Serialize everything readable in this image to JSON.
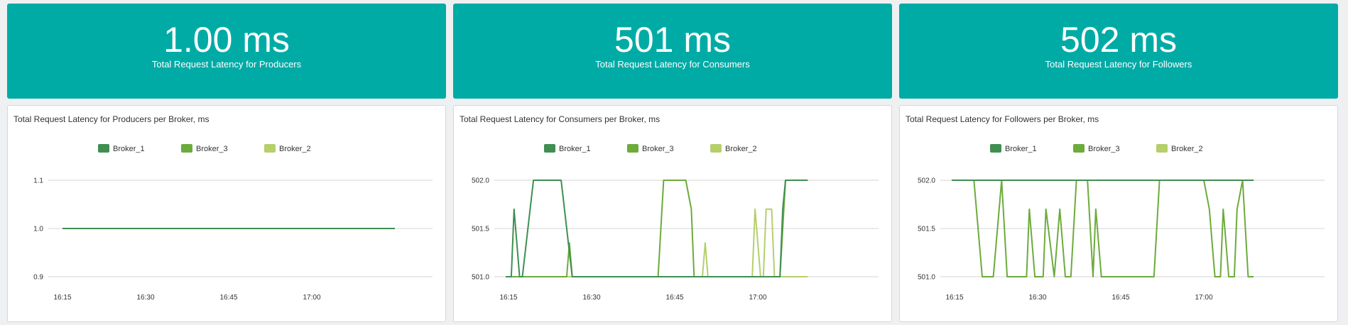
{
  "stats": [
    {
      "value": "1.00 ms",
      "label": "Total Request Latency for Producers"
    },
    {
      "value": "501 ms",
      "label": "Total Request Latency for Consumers"
    },
    {
      "value": "502 ms",
      "label": "Total Request Latency for Followers"
    }
  ],
  "colors": {
    "tile": "#00aba6",
    "Broker_1": "#3f8f52",
    "Broker_3": "#6cab3c",
    "Broker_2": "#b5cf6b",
    "grid": "#e3e3e3"
  },
  "chart_data": [
    {
      "type": "line",
      "title": "Total Request Latency for Producers per Broker, ms",
      "legend_position": "top-center",
      "grid": true,
      "xlim": [
        0,
        90
      ],
      "x_ticks": [
        {
          "x": 0,
          "label": "16:15"
        },
        {
          "x": 15,
          "label": "16:30"
        },
        {
          "x": 30,
          "label": "16:45"
        },
        {
          "x": 45,
          "label": "17:00"
        }
      ],
      "ylim": [
        0.9,
        1.1
      ],
      "y_ticks": [
        {
          "v": 0.9,
          "label": "0.9"
        },
        {
          "v": 1.0,
          "label": "1.0"
        },
        {
          "v": 1.1,
          "label": "1.1"
        }
      ],
      "series": [
        {
          "name": "Broker_1",
          "points": [
            [
              0,
              1.0
            ],
            [
              60,
              1.0
            ]
          ]
        },
        {
          "name": "Broker_3",
          "points": [
            [
              0,
              1.0
            ],
            [
              60,
              1.0
            ]
          ]
        },
        {
          "name": "Broker_2",
          "points": [
            [
              0,
              1.0
            ],
            [
              60,
              1.0
            ]
          ]
        }
      ]
    },
    {
      "type": "line",
      "title": "Total Request Latency for Consumers per Broker, ms",
      "legend_position": "top-center",
      "grid": true,
      "xlim": [
        0,
        90
      ],
      "x_ticks": [
        {
          "x": 0,
          "label": "16:15"
        },
        {
          "x": 15,
          "label": "16:30"
        },
        {
          "x": 30,
          "label": "16:45"
        },
        {
          "x": 45,
          "label": "17:00"
        }
      ],
      "ylim": [
        501.0,
        502.0
      ],
      "y_ticks": [
        {
          "v": 501.0,
          "label": "501.0"
        },
        {
          "v": 501.5,
          "label": "501.5"
        },
        {
          "v": 502.0,
          "label": "502.0"
        }
      ],
      "series": [
        {
          "name": "Broker_1",
          "points": [
            [
              -0.5,
              501
            ],
            [
              0.5,
              501
            ],
            [
              1,
              501.7
            ],
            [
              2,
              501
            ],
            [
              2.5,
              501
            ],
            [
              4.5,
              502
            ],
            [
              9.5,
              502
            ],
            [
              11.5,
              501
            ],
            [
              45,
              501
            ],
            [
              49,
              501
            ],
            [
              49.5,
              501.7
            ],
            [
              50,
              502
            ],
            [
              54,
              502
            ]
          ]
        },
        {
          "name": "Broker_3",
          "points": [
            [
              -0.5,
              501
            ],
            [
              10.5,
              501
            ],
            [
              11,
              501.35
            ],
            [
              11.5,
              501
            ],
            [
              27,
              501
            ],
            [
              28,
              502
            ],
            [
              32,
              502
            ],
            [
              33,
              501.7
            ],
            [
              33.5,
              501
            ],
            [
              47,
              501
            ],
            [
              49,
              501
            ],
            [
              50,
              502
            ],
            [
              54,
              502
            ]
          ]
        },
        {
          "name": "Broker_2",
          "points": [
            [
              -0.5,
              501
            ],
            [
              35,
              501
            ],
            [
              35.5,
              501.35
            ],
            [
              36,
              501
            ],
            [
              44,
              501
            ],
            [
              44.5,
              501.7
            ],
            [
              45.5,
              501
            ],
            [
              46,
              501
            ],
            [
              46.5,
              501.7
            ],
            [
              47.5,
              501.7
            ],
            [
              48,
              501
            ],
            [
              54,
              501
            ]
          ]
        }
      ]
    },
    {
      "type": "line",
      "title": "Total Request Latency for Followers per Broker, ms",
      "legend_position": "top-center",
      "grid": true,
      "xlim": [
        0,
        90
      ],
      "x_ticks": [
        {
          "x": 0,
          "label": "16:15"
        },
        {
          "x": 15,
          "label": "16:30"
        },
        {
          "x": 30,
          "label": "16:45"
        },
        {
          "x": 45,
          "label": "17:00"
        }
      ],
      "ylim": [
        501.0,
        502.0
      ],
      "y_ticks": [
        {
          "v": 501.0,
          "label": "501.0"
        },
        {
          "v": 501.5,
          "label": "501.5"
        },
        {
          "v": 502.0,
          "label": "502.0"
        }
      ],
      "series": [
        {
          "name": "Broker_1",
          "points": [
            [
              -0.5,
              502
            ],
            [
              54,
              502
            ]
          ]
        },
        {
          "name": "Broker_3",
          "points": [
            [
              -0.5,
              502
            ],
            [
              3.5,
              502
            ],
            [
              5,
              501
            ],
            [
              7,
              501
            ],
            [
              8.5,
              502
            ],
            [
              9.5,
              501
            ],
            [
              13,
              501
            ],
            [
              13.5,
              501.7
            ],
            [
              14.5,
              501
            ],
            [
              16,
              501
            ],
            [
              16.5,
              501.7
            ],
            [
              18,
              501
            ],
            [
              19,
              501.7
            ],
            [
              20,
              501
            ],
            [
              21,
              501
            ],
            [
              22,
              502
            ],
            [
              24,
              502
            ],
            [
              25,
              501
            ],
            [
              25.5,
              501.7
            ],
            [
              26.5,
              501
            ],
            [
              36,
              501
            ],
            [
              37,
              502
            ],
            [
              45,
              502
            ],
            [
              46,
              501.7
            ],
            [
              47,
              501
            ],
            [
              48,
              501
            ],
            [
              48.5,
              501.7
            ],
            [
              49.5,
              501
            ],
            [
              50.5,
              501
            ],
            [
              51,
              501.7
            ],
            [
              52,
              502
            ],
            [
              53,
              501
            ],
            [
              54,
              501
            ]
          ]
        },
        {
          "name": "Broker_2",
          "points": [
            [
              -0.5,
              502
            ],
            [
              54,
              502
            ]
          ]
        }
      ]
    }
  ]
}
